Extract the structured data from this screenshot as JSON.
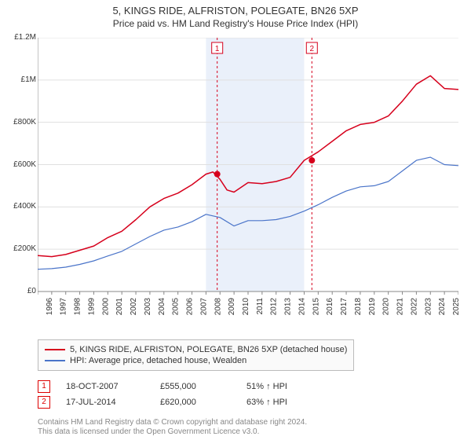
{
  "title": "5, KINGS RIDE, ALFRISTON, POLEGATE, BN26 5XP",
  "subtitle": "Price paid vs. HM Land Registry's House Price Index (HPI)",
  "chart": {
    "type": "line",
    "background_color": "#ffffff",
    "grid_color": "#e0e0e0",
    "axis_color": "#888888",
    "shade_band": {
      "from_year": 2007,
      "to_year": 2014,
      "fill": "#eaf0fa"
    },
    "y": {
      "min": 0,
      "max": 1200000,
      "ticks": [
        0,
        200000,
        400000,
        600000,
        800000,
        1000000,
        1200000
      ],
      "tick_labels": [
        "£0",
        "£200K",
        "£400K",
        "£600K",
        "£800K",
        "£1M",
        "£1.2M"
      ],
      "label_fontsize": 10
    },
    "x": {
      "min": 1995,
      "max": 2025,
      "ticks": [
        1995,
        1996,
        1997,
        1998,
        1999,
        2000,
        2001,
        2002,
        2003,
        2004,
        2005,
        2006,
        2007,
        2008,
        2009,
        2010,
        2011,
        2012,
        2013,
        2014,
        2015,
        2016,
        2017,
        2018,
        2019,
        2020,
        2021,
        2022,
        2023,
        2024,
        2025
      ],
      "label_rotation": -90,
      "label_fontsize": 10
    },
    "series": [
      {
        "id": "property",
        "label": "5, KINGS RIDE, ALFRISTON, POLEGATE, BN26 5XP (detached house)",
        "color": "#d6001c",
        "stroke_width": 1.5,
        "points": [
          [
            1995,
            170000
          ],
          [
            1996,
            165000
          ],
          [
            1997,
            175000
          ],
          [
            1998,
            195000
          ],
          [
            1999,
            215000
          ],
          [
            2000,
            255000
          ],
          [
            2001,
            285000
          ],
          [
            2002,
            340000
          ],
          [
            2003,
            400000
          ],
          [
            2004,
            440000
          ],
          [
            2005,
            465000
          ],
          [
            2006,
            505000
          ],
          [
            2007,
            555000
          ],
          [
            2007.5,
            565000
          ],
          [
            2008,
            530000
          ],
          [
            2008.5,
            480000
          ],
          [
            2009,
            470000
          ],
          [
            2010,
            515000
          ],
          [
            2011,
            510000
          ],
          [
            2012,
            520000
          ],
          [
            2013,
            540000
          ],
          [
            2014,
            620000
          ],
          [
            2015,
            660000
          ],
          [
            2016,
            710000
          ],
          [
            2017,
            760000
          ],
          [
            2018,
            790000
          ],
          [
            2019,
            800000
          ],
          [
            2020,
            830000
          ],
          [
            2021,
            900000
          ],
          [
            2022,
            980000
          ],
          [
            2023,
            1020000
          ],
          [
            2024,
            960000
          ],
          [
            2025,
            955000
          ]
        ]
      },
      {
        "id": "hpi",
        "label": "HPI: Average price, detached house, Wealden",
        "color": "#4a74c9",
        "stroke_width": 1.2,
        "points": [
          [
            1995,
            105000
          ],
          [
            1996,
            108000
          ],
          [
            1997,
            115000
          ],
          [
            1998,
            128000
          ],
          [
            1999,
            145000
          ],
          [
            2000,
            168000
          ],
          [
            2001,
            190000
          ],
          [
            2002,
            225000
          ],
          [
            2003,
            260000
          ],
          [
            2004,
            290000
          ],
          [
            2005,
            305000
          ],
          [
            2006,
            330000
          ],
          [
            2007,
            365000
          ],
          [
            2008,
            350000
          ],
          [
            2009,
            310000
          ],
          [
            2010,
            335000
          ],
          [
            2011,
            335000
          ],
          [
            2012,
            340000
          ],
          [
            2013,
            355000
          ],
          [
            2014,
            380000
          ],
          [
            2015,
            410000
          ],
          [
            2016,
            445000
          ],
          [
            2017,
            475000
          ],
          [
            2018,
            495000
          ],
          [
            2019,
            500000
          ],
          [
            2020,
            520000
          ],
          [
            2021,
            570000
          ],
          [
            2022,
            620000
          ],
          [
            2023,
            635000
          ],
          [
            2024,
            600000
          ],
          [
            2025,
            595000
          ]
        ]
      }
    ],
    "markers": [
      {
        "id": "1",
        "year": 2007.8,
        "value": 555000,
        "dot_color": "#d6001c",
        "line_color": "#d6001c",
        "line_dash": "3,3",
        "box_border": "#d6001c",
        "box_text_color": "#d6001c"
      },
      {
        "id": "2",
        "year": 2014.55,
        "value": 620000,
        "dot_color": "#d6001c",
        "line_color": "#d6001c",
        "line_dash": "3,3",
        "box_border": "#d6001c",
        "box_text_color": "#d6001c"
      }
    ]
  },
  "legend": {
    "rows": [
      {
        "color": "#d6001c",
        "label": "5, KINGS RIDE, ALFRISTON, POLEGATE, BN26 5XP (detached house)"
      },
      {
        "color": "#4a74c9",
        "label": "HPI: Average price, detached house, Wealden"
      }
    ]
  },
  "notes": [
    {
      "marker": "1",
      "date": "18-OCT-2007",
      "price": "£555,000",
      "rel": "51% ↑ HPI"
    },
    {
      "marker": "2",
      "date": "17-JUL-2014",
      "price": "£620,000",
      "rel": "63% ↑ HPI"
    }
  ],
  "footer": {
    "line1": "Contains HM Land Registry data © Crown copyright and database right 2024.",
    "line2": "This data is licensed under the Open Government Licence v3.0."
  }
}
